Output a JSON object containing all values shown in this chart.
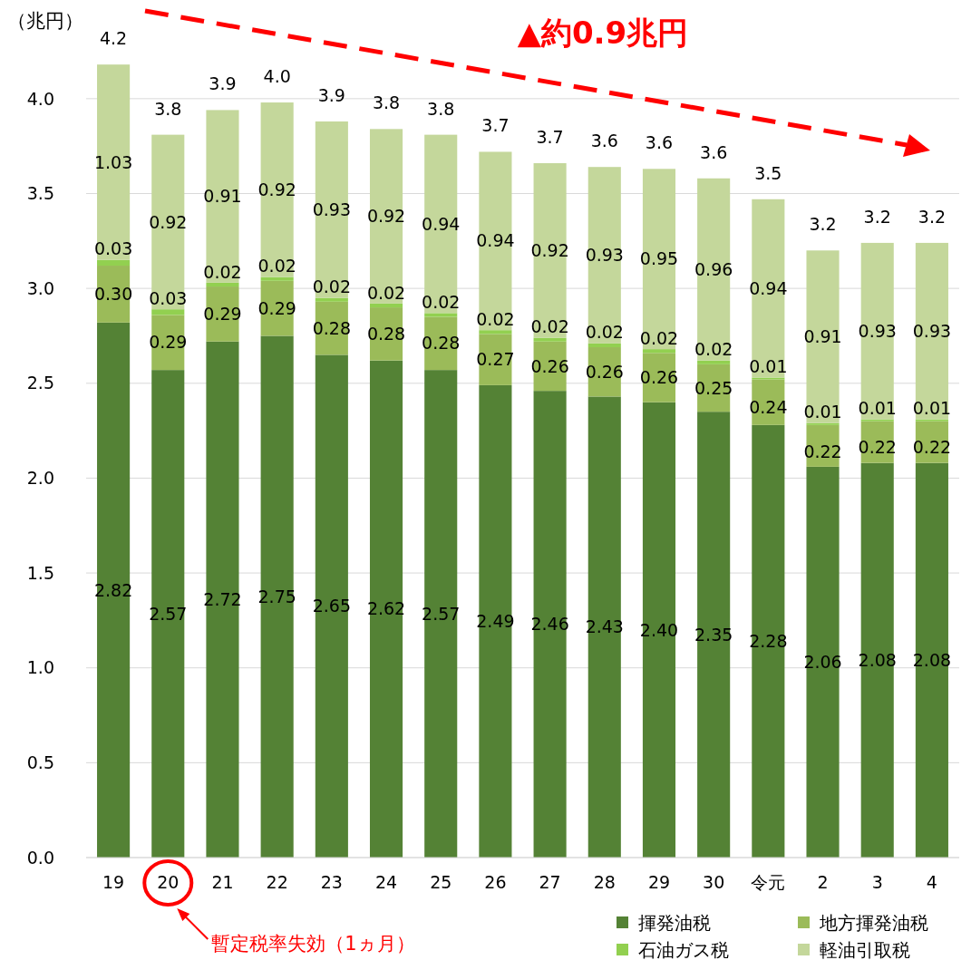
{
  "chart_data": {
    "type": "bar",
    "stacked": true,
    "ylabel": "（兆円）",
    "categories": [
      "19",
      "20",
      "21",
      "22",
      "23",
      "24",
      "25",
      "26",
      "27",
      "28",
      "29",
      "30",
      "令元",
      "2",
      "3",
      "4"
    ],
    "series": [
      {
        "name": "揮発油税",
        "color": "#548235",
        "values": [
          2.82,
          2.57,
          2.72,
          2.75,
          2.65,
          2.62,
          2.57,
          2.49,
          2.46,
          2.43,
          2.4,
          2.35,
          2.28,
          2.06,
          2.08,
          2.08
        ],
        "value_labels": [
          "2.82",
          "2.57",
          "2.72",
          "2.75",
          "2.65",
          "2.62",
          "2.57",
          "2.49",
          "2.46",
          "2.43",
          "2.40",
          "2.35",
          "2.28",
          "2.06",
          "2.08",
          "2.08"
        ]
      },
      {
        "name": "地方揮発油税",
        "color": "#9bbb59",
        "values": [
          0.3,
          0.29,
          0.29,
          0.29,
          0.28,
          0.28,
          0.28,
          0.27,
          0.26,
          0.26,
          0.26,
          0.25,
          0.24,
          0.22,
          0.22,
          0.22
        ],
        "value_labels": [
          "0.30",
          "0.29",
          "0.29",
          "0.29",
          "0.28",
          "0.28",
          "0.28",
          "0.27",
          "0.26",
          "0.26",
          "0.26",
          "0.25",
          "0.24",
          "0.22",
          "0.22",
          "0.22"
        ]
      },
      {
        "name": "石油ガス税",
        "color": "#92d050",
        "values": [
          0.03,
          0.03,
          0.02,
          0.02,
          0.02,
          0.02,
          0.02,
          0.02,
          0.02,
          0.02,
          0.02,
          0.02,
          0.01,
          0.01,
          0.01,
          0.01
        ],
        "value_labels": [
          "0.03",
          "0.03",
          "0.02",
          "0.02",
          "0.02",
          "0.02",
          "0.02",
          "0.02",
          "0.02",
          "0.02",
          "0.02",
          "0.02",
          "0.01",
          "0.01",
          "0.01",
          "0.01"
        ]
      },
      {
        "name": "軽油引取税",
        "color": "#c4d79b",
        "values": [
          1.03,
          0.92,
          0.91,
          0.92,
          0.93,
          0.92,
          0.94,
          0.94,
          0.92,
          0.93,
          0.95,
          0.96,
          0.94,
          0.91,
          0.93,
          0.93
        ],
        "value_labels": [
          "1.03",
          "0.92",
          "0.91",
          "0.92",
          "0.93",
          "0.92",
          "0.94",
          "0.94",
          "0.92",
          "0.93",
          "0.95",
          "0.96",
          "0.94",
          "0.91",
          "0.93",
          "0.93"
        ]
      }
    ],
    "totals": [
      "4.2",
      "3.8",
      "3.9",
      "4.0",
      "3.9",
      "3.8",
      "3.8",
      "3.7",
      "3.7",
      "3.6",
      "3.6",
      "3.6",
      "3.5",
      "3.2",
      "3.2",
      "3.2"
    ],
    "ylim": [
      0,
      4.2
    ],
    "yticks": [
      {
        "value": 0,
        "label": "0.0"
      },
      {
        "value": 0.5,
        "label": "0.5"
      },
      {
        "value": 1,
        "label": "1.0"
      },
      {
        "value": 1.5,
        "label": "1.5"
      },
      {
        "value": 2,
        "label": "2.0"
      },
      {
        "value": 2.5,
        "label": "2.5"
      },
      {
        "value": 3,
        "label": "3.0"
      },
      {
        "value": 3.5,
        "label": "3.5"
      },
      {
        "value": 4,
        "label": "4.0"
      }
    ],
    "grid": "y",
    "legend": "bottom right",
    "annotations": [
      "▲約0.9兆円",
      "暫定税率失効（1ヵ月）"
    ]
  }
}
